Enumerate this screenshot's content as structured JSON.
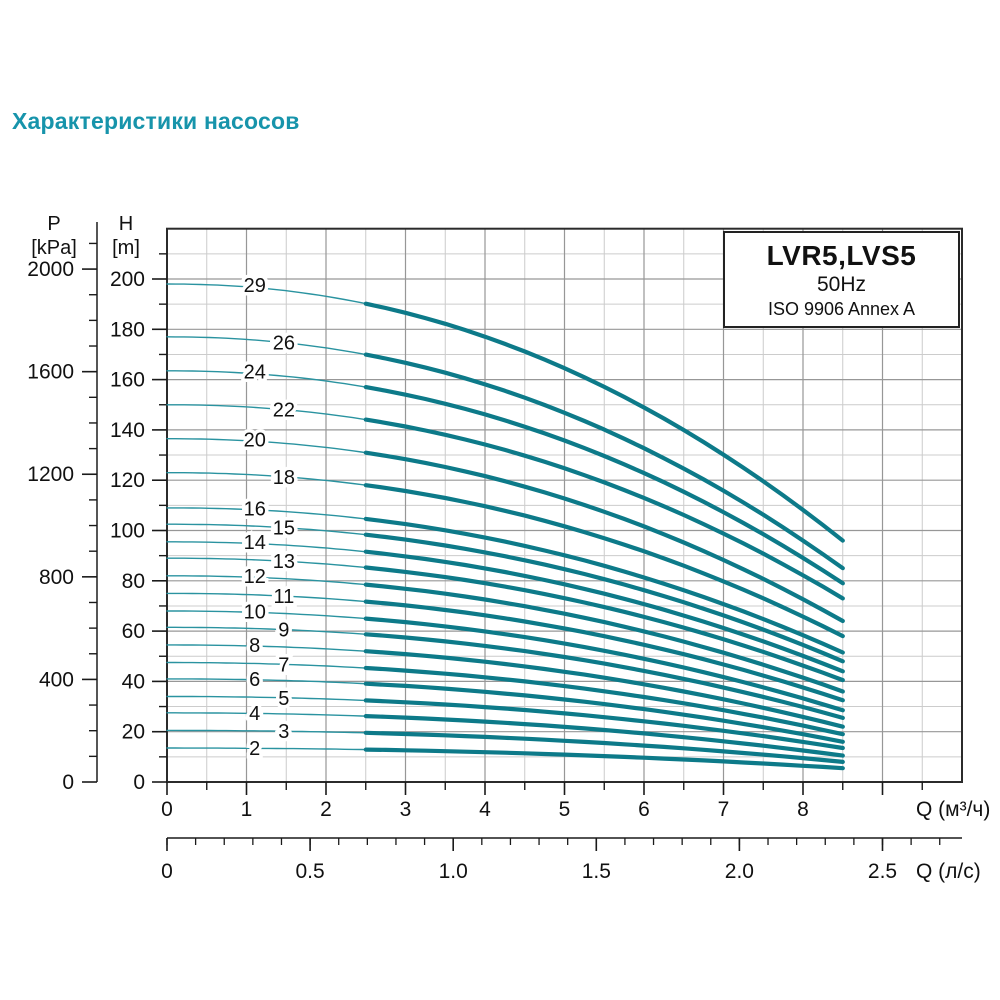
{
  "page": {
    "title": "Характеристики насосов"
  },
  "legend": {
    "model": "LVR5,LVS5",
    "frequency": "50Hz",
    "standard": "ISO 9906 Annex A"
  },
  "axis_heads": {
    "pressure_name": "P",
    "pressure_unit": "[kPa]",
    "head_name": "H",
    "head_unit": "[m]",
    "flow_m3h_label": "Q (м³/ч)",
    "flow_ls_label": "Q (л/с)"
  },
  "colors": {
    "title": "#1794ab",
    "curve_thick": "#0d7a89",
    "curve_thin": "#2a93a0",
    "grid_minor": "#cccccc",
    "grid_major": "#979797",
    "frame": "#2b2b2b",
    "tick": "#1a1a1a",
    "text": "#111111"
  },
  "chart_data": {
    "type": "line",
    "title": "LVR5,LVS5 50Hz ISO 9906 Annex A",
    "xlabel": "Q (м³/ч)",
    "x2label": "Q (л/с)",
    "ylabel": "H [m]",
    "y2label": "P [kPa]",
    "xlim_m3h": [
      0,
      10
    ],
    "ylim_m": [
      0,
      220
    ],
    "grid": true,
    "curve_q_start": 0,
    "curve_q_end": 8.5,
    "thick_from_q": 2.5,
    "droop_exponent": 2.1,
    "x_ticks_labeled_m3h": [
      0,
      1,
      2,
      3,
      4,
      5,
      6,
      7,
      8
    ],
    "x_ticks_major_m3h": [
      0,
      1,
      2,
      3,
      4,
      5,
      6,
      7,
      8,
      9
    ],
    "x_ticks_minor_step_m3h": 0.5,
    "ls_per_m3h": 0.27778,
    "x2_ticks_labeled_ls": [
      "0",
      "0.5",
      "1.0",
      "1.5",
      "2.0",
      "2.5"
    ],
    "x2_tick_minor_step_ls": 0.1,
    "x2_tick_max_ls": 2.7,
    "h_ticks_major": [
      0,
      20,
      40,
      60,
      80,
      100,
      120,
      140,
      160,
      180,
      200
    ],
    "h_ticks_minor": [
      10,
      30,
      50,
      70,
      90,
      110,
      130,
      150,
      170,
      190,
      210
    ],
    "p_ticks_major": [
      0,
      400,
      800,
      1200,
      1600,
      2000
    ],
    "p_ticks_minor_step": 100,
    "p_tick_max": 2100,
    "kpa_per_m": 9.80665,
    "series": [
      {
        "stages": 29,
        "h0": 198.0,
        "h_end": 96.0,
        "label": "29",
        "label_side": "left"
      },
      {
        "stages": 26,
        "h0": 177.0,
        "h_end": 85.0,
        "label": "26",
        "label_side": "right"
      },
      {
        "stages": 24,
        "h0": 163.5,
        "h_end": 79.0,
        "label": "24",
        "label_side": "left"
      },
      {
        "stages": 22,
        "h0": 150.0,
        "h_end": 73.0,
        "label": "22",
        "label_side": "right"
      },
      {
        "stages": 20,
        "h0": 136.5,
        "h_end": 64.0,
        "label": "20",
        "label_side": "left"
      },
      {
        "stages": 18,
        "h0": 123.0,
        "h_end": 58.0,
        "label": "18",
        "label_side": "right"
      },
      {
        "stages": 16,
        "h0": 109.0,
        "h_end": 51.5,
        "label": "16",
        "label_side": "left"
      },
      {
        "stages": 15,
        "h0": 102.5,
        "h_end": 48.0,
        "label": "15",
        "label_side": "right"
      },
      {
        "stages": 14,
        "h0": 95.5,
        "h_end": 44.0,
        "label": "14",
        "label_side": "left"
      },
      {
        "stages": 13,
        "h0": 89.0,
        "h_end": 40.5,
        "label": "13",
        "label_side": "right"
      },
      {
        "stages": 12,
        "h0": 82.0,
        "h_end": 36.0,
        "label": "12",
        "label_side": "left"
      },
      {
        "stages": 11,
        "h0": 75.0,
        "h_end": 32.5,
        "label": "11",
        "label_side": "right"
      },
      {
        "stages": 10,
        "h0": 68.0,
        "h_end": 28.5,
        "label": "10",
        "label_side": "left"
      },
      {
        "stages": 9,
        "h0": 61.5,
        "h_end": 25.5,
        "label": "9",
        "label_side": "right"
      },
      {
        "stages": 8,
        "h0": 54.5,
        "h_end": 22.0,
        "label": "8",
        "label_side": "left"
      },
      {
        "stages": 7,
        "h0": 47.5,
        "h_end": 19.0,
        "label": "7",
        "label_side": "right"
      },
      {
        "stages": 6,
        "h0": 41.0,
        "h_end": 16.0,
        "label": "6",
        "label_side": "left"
      },
      {
        "stages": 5,
        "h0": 34.0,
        "h_end": 13.5,
        "label": "5",
        "label_side": "right"
      },
      {
        "stages": 4,
        "h0": 27.5,
        "h_end": 10.5,
        "label": "4",
        "label_side": "left"
      },
      {
        "stages": 3,
        "h0": 20.5,
        "h_end": 8.0,
        "label": "3",
        "label_side": "right"
      },
      {
        "stages": 2,
        "h0": 13.5,
        "h_end": 5.5,
        "label": "2",
        "label_side": "left"
      }
    ],
    "label_q": {
      "left": 0.55,
      "right": 1.47
    }
  }
}
